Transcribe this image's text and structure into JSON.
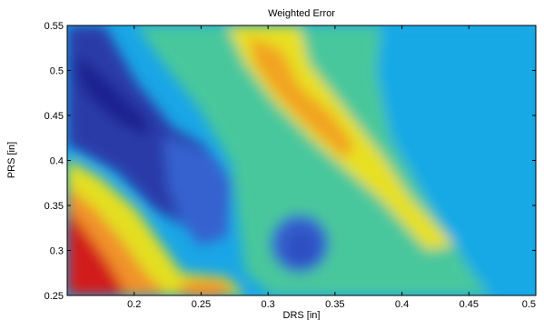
{
  "chart_data": {
    "type": "heatmap",
    "title": "Weighted Error",
    "xlabel": "DRS [in]",
    "ylabel": "PRS [in]",
    "xlim": [
      0.15,
      0.5
    ],
    "ylim": [
      0.25,
      0.55
    ],
    "x_ticks": [
      "0.2",
      "0.25",
      "0.3",
      "0.35",
      "0.4",
      "0.45",
      "0.5"
    ],
    "x_tick_values": [
      0.2,
      0.25,
      0.3,
      0.35,
      0.4,
      0.45,
      0.5
    ],
    "y_ticks": [
      "0.25",
      "0.3",
      "0.35",
      "0.4",
      "0.45",
      "0.5",
      "0.55"
    ],
    "y_tick_values": [
      0.25,
      0.3,
      0.35,
      0.4,
      0.45,
      0.5,
      0.55
    ],
    "grid": false,
    "colormap": "jet",
    "color_scale": [
      "#1f2a9e",
      "#2f5fd0",
      "#1aa6e6",
      "#19c7d6",
      "#44c6a8",
      "#8fcf5a",
      "#d6e12a",
      "#f6e11a",
      "#f5a520",
      "#e84c1e",
      "#d41c1c"
    ]
  }
}
